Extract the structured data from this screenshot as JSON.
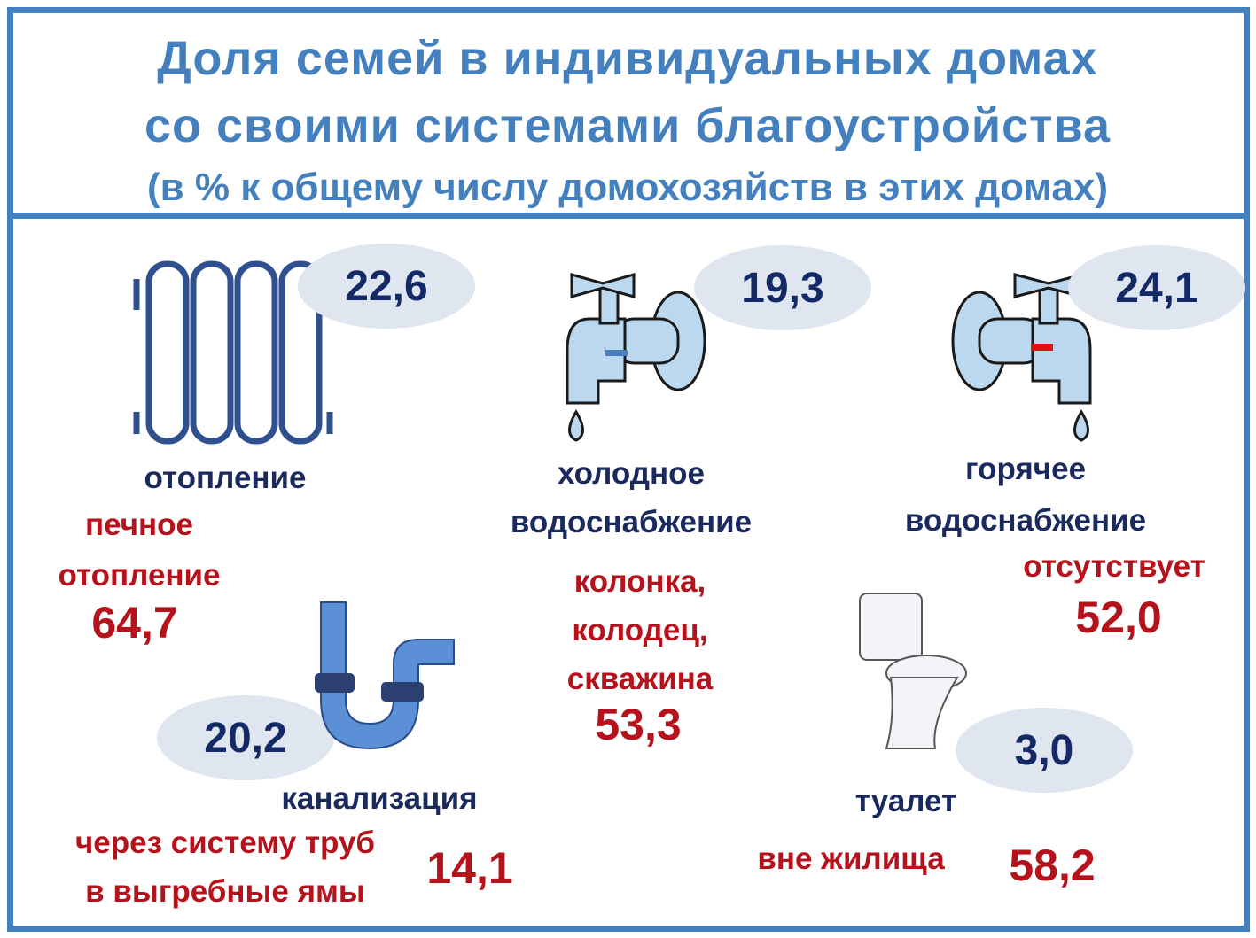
{
  "header": {
    "title_line1": "Доля семей в индивидуальных домах",
    "title_line2": "со своими системами благоустройства",
    "subtitle": "(в % к общему числу домохозяйств в этих домах)"
  },
  "colors": {
    "frame": "#4580be",
    "value_dark": "#142a66",
    "value_red": "#b5121b",
    "bubble": "#dfe6f0"
  },
  "items": {
    "heating": {
      "icon": "radiator-icon",
      "value": "22,6",
      "label": "отопление",
      "sub_line1": "печное",
      "sub_line2": "отопление",
      "sub_value": "64,7"
    },
    "cold_water": {
      "icon": "cold-tap-icon",
      "value": "19,3",
      "label_line1": "холодное",
      "label_line2": "водоснабжение",
      "sub_line1": "колонка,",
      "sub_line2": "колодец,",
      "sub_line3": "скважина",
      "sub_value": "53,3"
    },
    "hot_water": {
      "icon": "hot-tap-icon",
      "value": "24,1",
      "label_line1": "горячее",
      "label_line2": "водоснабжение",
      "sub_line1": "отсутствует",
      "sub_value": "52,0"
    },
    "sewer": {
      "icon": "pipe-icon",
      "value": "20,2",
      "label": "канализация",
      "sub_line1": "через систему труб",
      "sub_line2": "в выгребные ямы",
      "sub_value": "14,1"
    },
    "toilet": {
      "icon": "toilet-icon",
      "value": "3,0",
      "label": "туалет",
      "sub_line1": "вне жилища",
      "sub_value": "58,2"
    }
  }
}
